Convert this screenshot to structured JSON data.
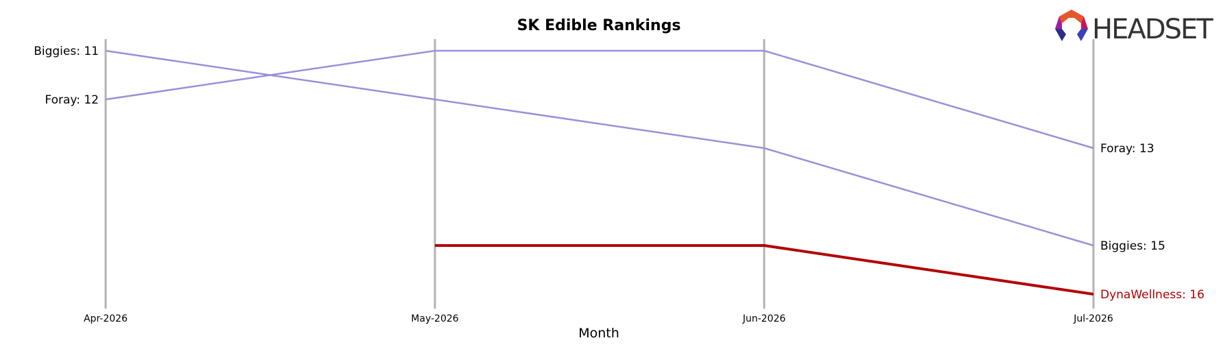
{
  "chart_data": {
    "type": "line",
    "title": "SK Edible Rankings",
    "xlabel": "Month",
    "ylabel": "",
    "x": [
      "Apr-2026",
      "May-2026",
      "Jun-2026",
      "Jul-2026"
    ],
    "y_inverted": true,
    "ylim": [
      10.4,
      16.4
    ],
    "grid": "vertical lines at each month",
    "series": [
      {
        "name": "Biggies",
        "values": [
          11,
          12,
          13,
          15
        ],
        "color": "#9b8fd9",
        "emphasis": false,
        "start_label": "Biggies: 11",
        "end_label": "Biggies: 15"
      },
      {
        "name": "Foray",
        "values": [
          12,
          11,
          11,
          13
        ],
        "color": "#9b8fd9",
        "emphasis": false,
        "start_label": "Foray: 12",
        "end_label": "Foray: 13"
      },
      {
        "name": "DynaWellness",
        "values": [
          null,
          15,
          15,
          16
        ],
        "color": "#b30000",
        "emphasis": true,
        "start_label": "",
        "end_label": "DynaWellness: 16"
      }
    ]
  },
  "logo": {
    "text": "HEADSET",
    "colors": [
      "#e8552b",
      "#c2185b",
      "#9c1fa1",
      "#2b2f8a",
      "#3a3fbf"
    ]
  }
}
